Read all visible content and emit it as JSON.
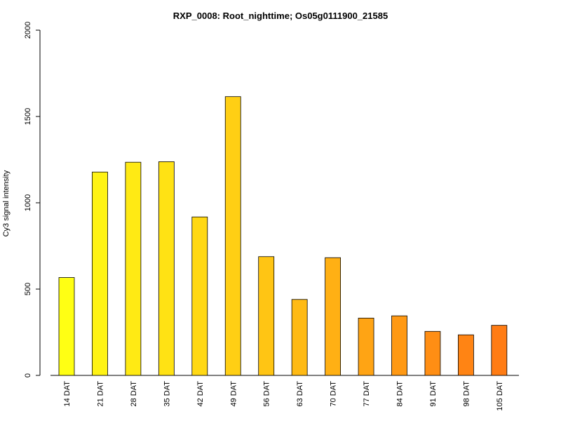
{
  "chart_data": {
    "type": "bar",
    "title": "RXP_0008: Root_nighttime; Os05g0111900_21585",
    "ylabel": "Cy3 signal intensity",
    "xlabel": "",
    "ylim": [
      0,
      2000
    ],
    "yticks": [
      0,
      500,
      1000,
      1500,
      2000
    ],
    "grid": false,
    "categories": [
      "14 DAT",
      "21 DAT",
      "28 DAT",
      "35 DAT",
      "42 DAT",
      "49 DAT",
      "56 DAT",
      "63 DAT",
      "70 DAT",
      "77 DAT",
      "84 DAT",
      "91 DAT",
      "98 DAT",
      "105 DAT"
    ],
    "values": [
      567,
      1178,
      1235,
      1238,
      918,
      1615,
      688,
      440,
      682,
      332,
      345,
      255,
      235,
      290
    ],
    "colors": [
      "#FFFF14",
      "#FFF314",
      "#FFEA14",
      "#FFE214",
      "#FFD814",
      "#FFCF14",
      "#FFC514",
      "#FFBA14",
      "#FFB014",
      "#FFA414",
      "#FF9914",
      "#FF8E14",
      "#FF8414",
      "#FF7C14"
    ]
  }
}
